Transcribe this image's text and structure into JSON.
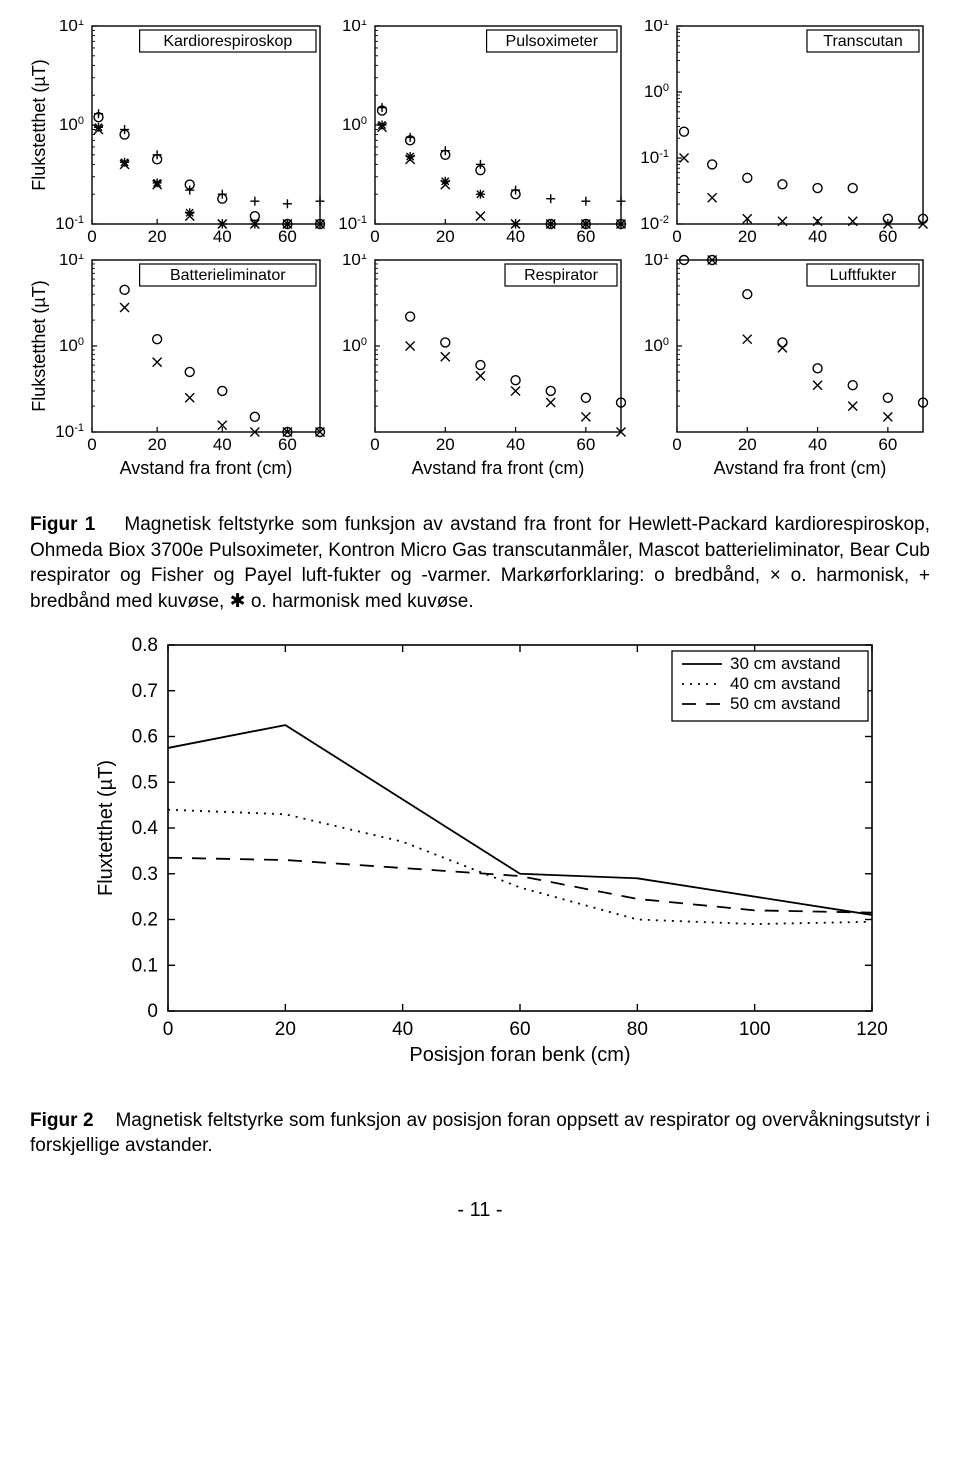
{
  "figure1": {
    "ylabel": "Flukstetthet (µT)",
    "xlabel": "Avstand fra front (cm)",
    "axis_color": "#000000",
    "background_color": "#ffffff",
    "font_size_ticks": 16,
    "font_size_ylabel": 18,
    "xlim": [
      0,
      70
    ],
    "xticks": [
      0,
      20,
      40,
      60
    ],
    "marker_legend": {
      "o": "bredbånd",
      "x": "o. harmonisk",
      "+": "bredbånd med kuvøse",
      "*": "o. harmonisk med kuvøse"
    },
    "subplots": [
      {
        "title": "Kardiorespiroskop",
        "ylim_exp": [
          -1,
          1
        ],
        "yticks_exp": [
          -1,
          0,
          1
        ],
        "series": [
          {
            "marker": "o",
            "data": [
              [
                2,
                1.2
              ],
              [
                10,
                0.8
              ],
              [
                20,
                0.45
              ],
              [
                30,
                0.25
              ],
              [
                40,
                0.18
              ],
              [
                50,
                0.12
              ],
              [
                60,
                0.085
              ],
              [
                70,
                0.065
              ]
            ]
          },
          {
            "marker": "x",
            "data": [
              [
                2,
                0.9
              ],
              [
                10,
                0.4
              ],
              [
                20,
                0.25
              ],
              [
                30,
                0.12
              ],
              [
                40,
                0.075
              ],
              [
                50,
                0.055
              ],
              [
                60,
                0.04
              ],
              [
                70,
                0.03
              ]
            ]
          },
          {
            "marker": "+",
            "data": [
              [
                2,
                1.3
              ],
              [
                10,
                0.9
              ],
              [
                20,
                0.5
              ],
              [
                30,
                0.22
              ],
              [
                40,
                0.2
              ],
              [
                50,
                0.17
              ],
              [
                60,
                0.16
              ],
              [
                70,
                0.17
              ]
            ]
          },
          {
            "marker": "*",
            "data": [
              [
                2,
                0.95
              ],
              [
                10,
                0.42
              ],
              [
                20,
                0.26
              ],
              [
                30,
                0.13
              ],
              [
                40,
                0.08
              ],
              [
                50,
                0.06
              ],
              [
                60,
                0.045
              ],
              [
                70,
                0.035
              ]
            ]
          }
        ]
      },
      {
        "title": "Pulsoximeter",
        "ylim_exp": [
          -1,
          1
        ],
        "yticks_exp": [
          -1,
          0,
          1
        ],
        "series": [
          {
            "marker": "o",
            "data": [
              [
                2,
                1.4
              ],
              [
                10,
                0.7
              ],
              [
                20,
                0.5
              ],
              [
                30,
                0.35
              ],
              [
                40,
                0.2
              ],
              [
                50,
                0.1
              ],
              [
                60,
                0.075
              ],
              [
                70,
                0.055
              ]
            ]
          },
          {
            "marker": "x",
            "data": [
              [
                2,
                0.95
              ],
              [
                10,
                0.45
              ],
              [
                20,
                0.25
              ],
              [
                30,
                0.12
              ],
              [
                40,
                0.085
              ],
              [
                50,
                0.055
              ],
              [
                60,
                0.04
              ],
              [
                70,
                0.03
              ]
            ]
          },
          {
            "marker": "+",
            "data": [
              [
                2,
                1.5
              ],
              [
                10,
                0.75
              ],
              [
                20,
                0.55
              ],
              [
                30,
                0.4
              ],
              [
                40,
                0.22
              ],
              [
                50,
                0.18
              ],
              [
                60,
                0.17
              ],
              [
                70,
                0.17
              ]
            ]
          },
          {
            "marker": "*",
            "data": [
              [
                2,
                1.0
              ],
              [
                10,
                0.48
              ],
              [
                20,
                0.27
              ],
              [
                30,
                0.2
              ],
              [
                40,
                0.1
              ],
              [
                50,
                0.075
              ],
              [
                60,
                0.055
              ],
              [
                70,
                0.04
              ]
            ]
          }
        ]
      },
      {
        "title": "Transcutan",
        "ylim_exp": [
          -2,
          1
        ],
        "yticks_exp": [
          -2,
          -1,
          0,
          1
        ],
        "series": [
          {
            "marker": "o",
            "data": [
              [
                2,
                0.25
              ],
              [
                10,
                0.08
              ],
              [
                20,
                0.05
              ],
              [
                30,
                0.04
              ],
              [
                40,
                0.035
              ],
              [
                50,
                0.035
              ],
              [
                60,
                0.012
              ],
              [
                70,
                0.012
              ]
            ]
          },
          {
            "marker": "x",
            "data": [
              [
                2,
                0.1
              ],
              [
                10,
                0.025
              ],
              [
                20,
                0.012
              ],
              [
                30,
                0.011
              ],
              [
                40,
                0.011
              ],
              [
                50,
                0.011
              ],
              [
                60,
                0.01
              ],
              [
                70,
                0.01
              ]
            ]
          }
        ]
      },
      {
        "title": "Batterieliminator",
        "ylim_exp": [
          -1,
          1
        ],
        "yticks_exp": [
          -1,
          0,
          1
        ],
        "series": [
          {
            "marker": "o",
            "data": [
              [
                10,
                4.5
              ],
              [
                20,
                1.2
              ],
              [
                30,
                0.5
              ],
              [
                40,
                0.3
              ],
              [
                50,
                0.15
              ],
              [
                60,
                0.1
              ],
              [
                70,
                0.08
              ]
            ]
          },
          {
            "marker": "x",
            "data": [
              [
                10,
                2.8
              ],
              [
                20,
                0.65
              ],
              [
                30,
                0.25
              ],
              [
                40,
                0.12
              ],
              [
                50,
                0.08
              ],
              [
                60,
                0.055
              ],
              [
                70,
                0.04
              ]
            ]
          }
        ]
      },
      {
        "title": "Respirator",
        "ylim_exp": [
          -1,
          1
        ],
        "yticks_exp": [
          0,
          1
        ],
        "series": [
          {
            "marker": "o",
            "data": [
              [
                10,
                2.2
              ],
              [
                20,
                1.1
              ],
              [
                30,
                0.6
              ],
              [
                40,
                0.4
              ],
              [
                50,
                0.3
              ],
              [
                60,
                0.25
              ],
              [
                70,
                0.22
              ]
            ]
          },
          {
            "marker": "x",
            "data": [
              [
                10,
                1.0
              ],
              [
                20,
                0.75
              ],
              [
                30,
                0.45
              ],
              [
                40,
                0.3
              ],
              [
                50,
                0.22
              ],
              [
                60,
                0.15
              ],
              [
                70,
                0.1
              ]
            ]
          }
        ]
      },
      {
        "title": "Luftfukter",
        "ylim_exp": [
          -1,
          1
        ],
        "yticks_exp": [
          0,
          1
        ],
        "series": [
          {
            "marker": "o",
            "data": [
              [
                2,
                18
              ],
              [
                10,
                15
              ],
              [
                20,
                4.0
              ],
              [
                30,
                1.1
              ],
              [
                40,
                0.55
              ],
              [
                50,
                0.35
              ],
              [
                60,
                0.25
              ],
              [
                70,
                0.22
              ]
            ]
          },
          {
            "marker": "x",
            "data": [
              [
                10,
                10
              ],
              [
                20,
                1.2
              ],
              [
                30,
                0.95
              ],
              [
                40,
                0.35
              ],
              [
                50,
                0.2
              ],
              [
                60,
                0.15
              ]
            ]
          }
        ]
      }
    ],
    "caption_label": "Figur 1",
    "caption_text": "Magnetisk feltstyrke som funksjon av avstand fra front for Hewlett-Packard kardiorespiroskop, Ohmeda Biox 3700e Pulsoximeter, Kontron Micro Gas transcutanmåler, Mascot batterieliminator, Bear Cub respirator og Fisher og Payel luft-fukter og -varmer. Markørforklaring:",
    "legend_items": [
      {
        "glyph": "o",
        "text": "bredbånd,"
      },
      {
        "glyph": "×",
        "text": "o. harmonisk,"
      },
      {
        "glyph": "+",
        "text": "bredbånd med kuvøse,"
      },
      {
        "glyph": "✱",
        "text": "o. harmonisk"
      }
    ],
    "caption_tail": "med kuvøse."
  },
  "figure2": {
    "type": "line",
    "ylabel": "Fluxtetthet (µT)",
    "xlabel": "Posisjon foran benk (cm)",
    "xlim": [
      0,
      120
    ],
    "ylim": [
      0,
      0.8
    ],
    "xticks": [
      0,
      20,
      40,
      60,
      80,
      100,
      120
    ],
    "yticks": [
      0,
      0.1,
      0.2,
      0.3,
      0.4,
      0.5,
      0.6,
      0.7,
      0.8
    ],
    "axis_color": "#000000",
    "font_size_ticks": 18,
    "font_size_label": 20,
    "line_width": 1.8,
    "legend": {
      "position": "top-right",
      "items": [
        {
          "label": "30 cm avstand",
          "style": "solid"
        },
        {
          "label": "40 cm avstand",
          "style": "dotted"
        },
        {
          "label": "50 cm avstand",
          "style": "dashed"
        }
      ]
    },
    "series": [
      {
        "name": "30 cm avstand",
        "style": "solid",
        "data": [
          [
            0,
            0.575
          ],
          [
            20,
            0.625
          ],
          [
            60,
            0.3
          ],
          [
            80,
            0.29
          ],
          [
            120,
            0.21
          ]
        ]
      },
      {
        "name": "40 cm avstand",
        "style": "dotted",
        "data": [
          [
            0,
            0.44
          ],
          [
            20,
            0.43
          ],
          [
            40,
            0.37
          ],
          [
            60,
            0.27
          ],
          [
            80,
            0.2
          ],
          [
            100,
            0.19
          ],
          [
            120,
            0.195
          ]
        ]
      },
      {
        "name": "50 cm avstand",
        "style": "dashed",
        "data": [
          [
            0,
            0.335
          ],
          [
            20,
            0.33
          ],
          [
            60,
            0.295
          ],
          [
            80,
            0.245
          ],
          [
            100,
            0.22
          ],
          [
            120,
            0.215
          ]
        ]
      }
    ],
    "caption_label": "Figur 2",
    "caption_text": "Magnetisk feltstyrke som funksjon av posisjon foran oppsett av respirator og overvåkningsutstyr i forskjellige avstander."
  },
  "page_number": "- 11 -"
}
